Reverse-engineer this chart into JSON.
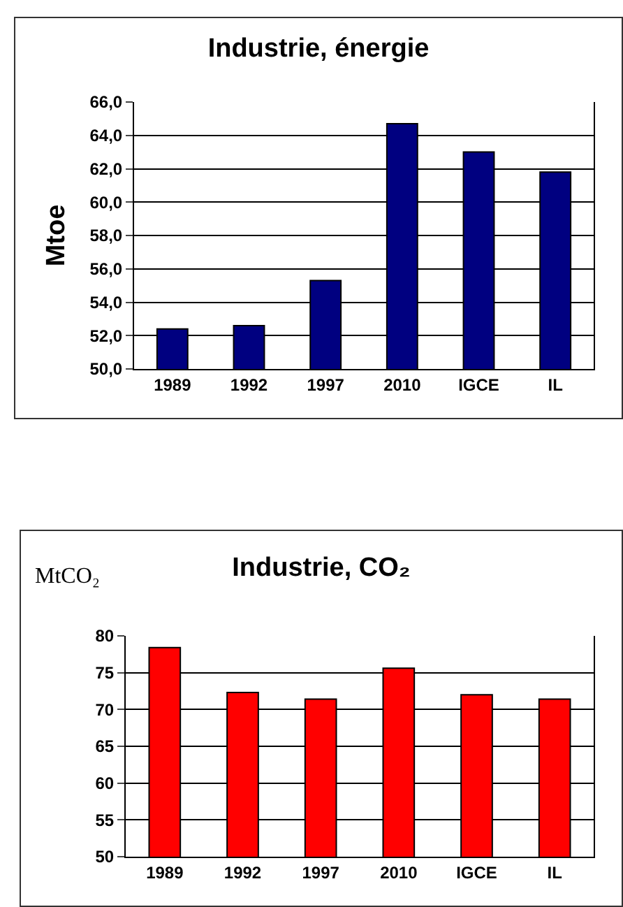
{
  "chart_data": [
    {
      "type": "bar",
      "title": "Industrie, énergie",
      "ylabel": "Mtoe",
      "categories": [
        "1989",
        "1992",
        "1997",
        "2010",
        "IGCE",
        "IL"
      ],
      "series": [
        {
          "color": "#000080",
          "values": [
            52.4,
            52.6,
            55.3,
            64.7,
            63.0,
            61.8
          ]
        }
      ],
      "ylim": [
        50,
        66
      ],
      "yticks": [
        {
          "value": 50,
          "label": "50,0"
        },
        {
          "value": 52,
          "label": "52,0"
        },
        {
          "value": 54,
          "label": "54,0"
        },
        {
          "value": 56,
          "label": "56,0"
        },
        {
          "value": 58,
          "label": "58,0"
        },
        {
          "value": 60,
          "label": "60,0"
        },
        {
          "value": 62,
          "label": "62,0"
        },
        {
          "value": 64,
          "label": "64,0"
        },
        {
          "value": 66,
          "label": "66,0"
        }
      ],
      "grid": "y"
    },
    {
      "type": "bar",
      "title": "Industrie, CO₂",
      "ylabel": "MtCO₂",
      "categories": [
        "1989",
        "1992",
        "1997",
        "2010",
        "IGCE",
        "IL"
      ],
      "series": [
        {
          "color": "#ff0000",
          "values": [
            78.4,
            72.3,
            71.4,
            75.6,
            72.0,
            71.4
          ]
        }
      ],
      "ylim": [
        50,
        80
      ],
      "yticks": [
        50,
        55,
        60,
        65,
        70,
        75,
        80
      ],
      "grid": "y"
    }
  ]
}
